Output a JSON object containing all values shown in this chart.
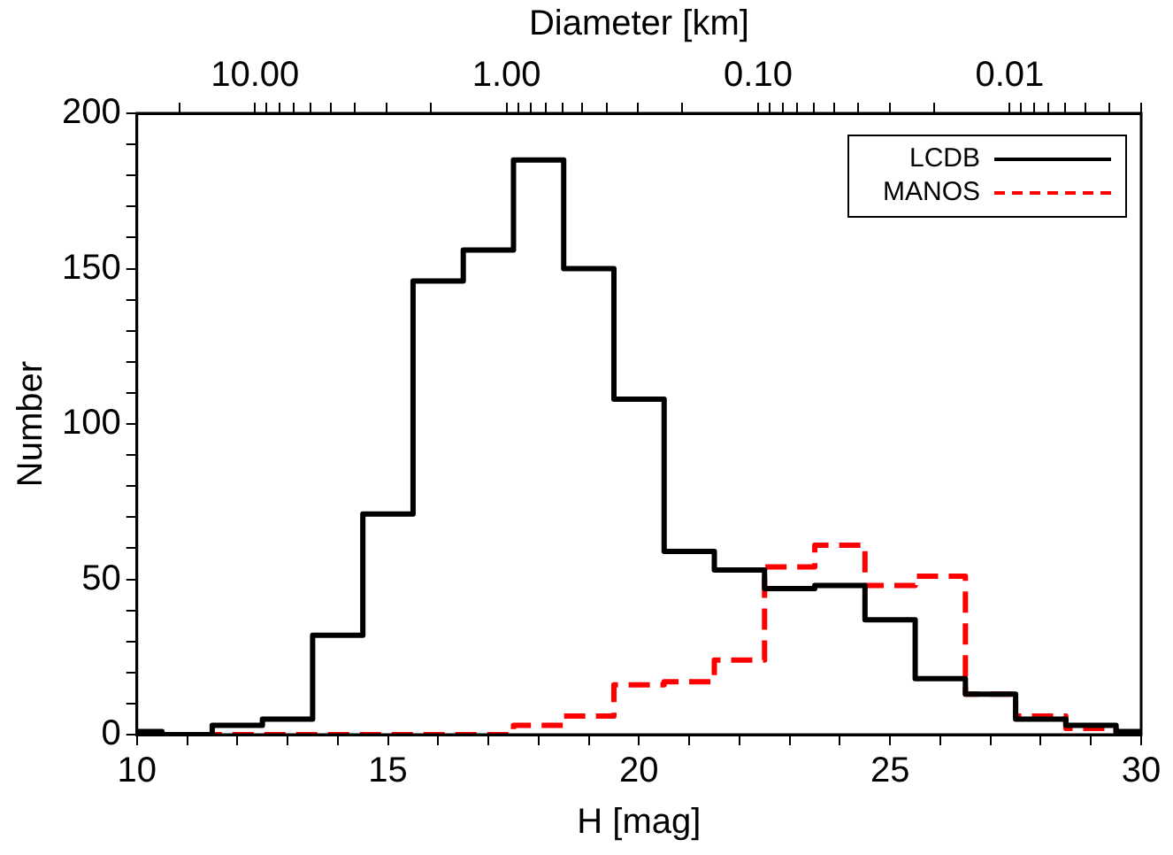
{
  "chart_data": {
    "type": "histogram",
    "xlabel": "H [mag]",
    "ylabel": "Number",
    "x2label": "Diameter [km]",
    "bins": [
      10,
      10.5,
      11.5,
      12.5,
      13.5,
      14.5,
      15.5,
      16.5,
      17.5,
      18.5,
      19.5,
      20.5,
      21.5,
      22.5,
      23.5,
      24.5,
      25.5,
      26.5,
      27.5,
      28.5,
      29.5,
      30
    ],
    "series": [
      {
        "name": "LCDB",
        "color": "#000000",
        "line_style": "solid",
        "values": [
          1,
          0,
          3,
          5,
          32,
          71,
          146,
          156,
          185,
          150,
          108,
          59,
          53,
          47,
          48,
          37,
          18,
          13,
          5,
          3,
          1
        ]
      },
      {
        "name": "MANOS",
        "color": "#ff0000",
        "line_style": "dashed",
        "values": [
          0,
          0,
          0,
          0,
          0,
          0,
          0,
          0,
          3,
          6,
          16,
          17,
          24,
          54,
          61,
          48,
          51,
          13,
          6,
          2,
          0
        ]
      }
    ],
    "xlim": [
      10,
      30
    ],
    "xticks": [
      10,
      {
        "value": 11,
        "label": null
      },
      {
        "value": 12,
        "label": null
      },
      {
        "value": 13,
        "label": null
      },
      {
        "value": 14,
        "label": null
      },
      15,
      {
        "value": 16,
        "label": null
      },
      {
        "value": 17,
        "label": null
      },
      {
        "value": 18,
        "label": null
      },
      {
        "value": 19,
        "label": null
      },
      20,
      {
        "value": 21,
        "label": null
      },
      {
        "value": 22,
        "label": null
      },
      {
        "value": 23,
        "label": null
      },
      {
        "value": 24,
        "label": null
      },
      25,
      {
        "value": 26,
        "label": null
      },
      {
        "value": 27,
        "label": null
      },
      {
        "value": 28,
        "label": null
      },
      {
        "value": 29,
        "label": null
      },
      30
    ],
    "ylim": [
      0,
      200
    ],
    "yticks": [
      0,
      {
        "value": 10,
        "label": null
      },
      {
        "value": 20,
        "label": null
      },
      {
        "value": 30,
        "label": null
      },
      {
        "value": 40,
        "label": null
      },
      50,
      {
        "value": 60,
        "label": null
      },
      {
        "value": 70,
        "label": null
      },
      {
        "value": 80,
        "label": null
      },
      {
        "value": 90,
        "label": null
      },
      100,
      {
        "value": 110,
        "label": null
      },
      {
        "value": 120,
        "label": null
      },
      {
        "value": 130,
        "label": null
      },
      {
        "value": 140,
        "label": null
      },
      150,
      {
        "value": 160,
        "label": null
      },
      {
        "value": 170,
        "label": null
      },
      {
        "value": 180,
        "label": null
      },
      {
        "value": 190,
        "label": null
      },
      200
    ],
    "x2lim": [
      29.5,
      0.003
    ],
    "x2ticks": [
      {
        "value": 20,
        "label": null
      },
      {
        "value": 10,
        "label": "10.00"
      },
      {
        "value": 9,
        "label": null
      },
      {
        "value": 8,
        "label": null
      },
      {
        "value": 7,
        "label": null
      },
      {
        "value": 6,
        "label": null
      },
      {
        "value": 5,
        "label": null
      },
      {
        "value": 4,
        "label": null
      },
      {
        "value": 3,
        "label": null
      },
      {
        "value": 2,
        "label": null
      },
      {
        "value": 1,
        "label": "1.00"
      },
      {
        "value": 0.9,
        "label": null
      },
      {
        "value": 0.8,
        "label": null
      },
      {
        "value": 0.7,
        "label": null
      },
      {
        "value": 0.6,
        "label": null
      },
      {
        "value": 0.5,
        "label": null
      },
      {
        "value": 0.4,
        "label": null
      },
      {
        "value": 0.3,
        "label": null
      },
      {
        "value": 0.2,
        "label": null
      },
      {
        "value": 0.1,
        "label": "0.10"
      },
      {
        "value": 0.09,
        "label": null
      },
      {
        "value": 0.08,
        "label": null
      },
      {
        "value": 0.07,
        "label": null
      },
      {
        "value": 0.06,
        "label": null
      },
      {
        "value": 0.05,
        "label": null
      },
      {
        "value": 0.04,
        "label": null
      },
      {
        "value": 0.03,
        "label": null
      },
      {
        "value": 0.02,
        "label": null
      },
      {
        "value": 0.01,
        "label": "0.01"
      },
      {
        "value": 0.009,
        "label": null
      },
      {
        "value": 0.008,
        "label": null
      },
      {
        "value": 0.007,
        "label": null
      },
      {
        "value": 0.006,
        "label": null
      },
      {
        "value": 0.005,
        "label": null
      },
      {
        "value": 0.004,
        "label": null
      },
      {
        "value": 0.003,
        "label": null
      }
    ],
    "log": "x2",
    "grid": false,
    "legend": "top right"
  }
}
